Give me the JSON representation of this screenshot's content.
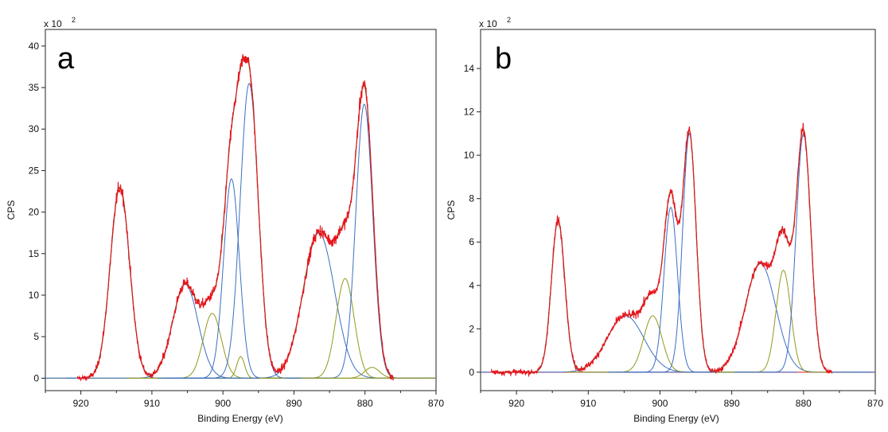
{
  "chart_data": [
    {
      "type": "line",
      "panel_label": "a",
      "xlabel": "Binding Energy (eV)",
      "ylabel": "CPS",
      "multiplier": "x 10",
      "multiplier_exp": "2",
      "xlim": [
        925,
        870
      ],
      "ylim": [
        -1.5,
        42
      ],
      "xticks": [
        920,
        910,
        900,
        890,
        880,
        870
      ],
      "yticks": [
        0,
        5,
        10,
        15,
        20,
        25,
        30,
        35,
        40
      ],
      "colors": {
        "data": "#e8141c",
        "fit": "#6b5a1e",
        "blue": "#3b6fc4",
        "olive": "#8f9a1c",
        "baseline": "#8f9a1c"
      },
      "baseline": 0,
      "data_x_range": [
        920.5,
        876
      ],
      "peaks": [
        {
          "component": "blue",
          "center": 914.5,
          "height": 23.0,
          "fwhm": 3.2
        },
        {
          "component": "blue",
          "center": 905.3,
          "height": 11.3,
          "fwhm": 4.2
        },
        {
          "component": "olive",
          "center": 901.5,
          "height": 7.8,
          "fwhm": 3.0
        },
        {
          "component": "blue",
          "center": 898.8,
          "height": 24.0,
          "fwhm": 2.6
        },
        {
          "component": "olive",
          "center": 897.5,
          "height": 2.6,
          "fwhm": 1.3
        },
        {
          "component": "blue",
          "center": 896.3,
          "height": 35.5,
          "fwhm": 3.0
        },
        {
          "component": "blue",
          "center": 886.5,
          "height": 17.5,
          "fwhm": 5.2
        },
        {
          "component": "olive",
          "center": 882.8,
          "height": 12.0,
          "fwhm": 3.0
        },
        {
          "component": "blue",
          "center": 880.1,
          "height": 33.0,
          "fwhm": 2.8
        },
        {
          "component": "olive",
          "center": 879.0,
          "height": 1.3,
          "fwhm": 2.5
        }
      ]
    },
    {
      "type": "line",
      "panel_label": "b",
      "xlabel": "Binding Energy (eV)",
      "ylabel": "CPS",
      "multiplier": "x 10",
      "multiplier_exp": "2",
      "xlim": [
        925,
        870
      ],
      "ylim": [
        -0.85,
        15.8
      ],
      "xticks": [
        920,
        910,
        900,
        890,
        880,
        870
      ],
      "yticks": [
        0,
        2,
        4,
        6,
        8,
        10,
        12,
        14
      ],
      "colors": {
        "data": "#e8141c",
        "fit": "#6b5a1e",
        "blue": "#3b6fc4",
        "olive": "#8f9a1c",
        "baseline": "#e8141c"
      },
      "baseline": 0,
      "data_x_range": [
        923.5,
        876
      ],
      "peaks": [
        {
          "component": "blue",
          "center": 914.2,
          "height": 7.0,
          "fwhm": 2.2
        },
        {
          "component": "blue",
          "center": 904.8,
          "height": 2.6,
          "fwhm": 6.0
        },
        {
          "component": "olive",
          "center": 901.0,
          "height": 2.6,
          "fwhm": 3.0
        },
        {
          "component": "blue",
          "center": 898.5,
          "height": 7.6,
          "fwhm": 2.2
        },
        {
          "component": "blue",
          "center": 895.9,
          "height": 11.0,
          "fwhm": 2.2
        },
        {
          "component": "blue",
          "center": 886.0,
          "height": 5.0,
          "fwhm": 5.0
        },
        {
          "component": "olive",
          "center": 882.8,
          "height": 4.7,
          "fwhm": 2.4
        },
        {
          "component": "blue",
          "center": 880.0,
          "height": 11.0,
          "fwhm": 2.4
        }
      ]
    }
  ]
}
